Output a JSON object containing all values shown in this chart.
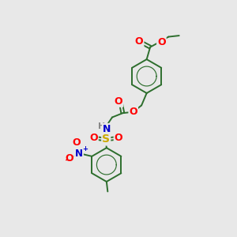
{
  "bg_color": "#e8e8e8",
  "bond_color": "#2d6e2d",
  "bond_width": 1.4,
  "atom_colors": {
    "O": "#ff0000",
    "N": "#0000cc",
    "S": "#ccaa00",
    "H": "#888888"
  },
  "font_size": 8,
  "figsize": [
    3.0,
    3.0
  ],
  "dpi": 100
}
